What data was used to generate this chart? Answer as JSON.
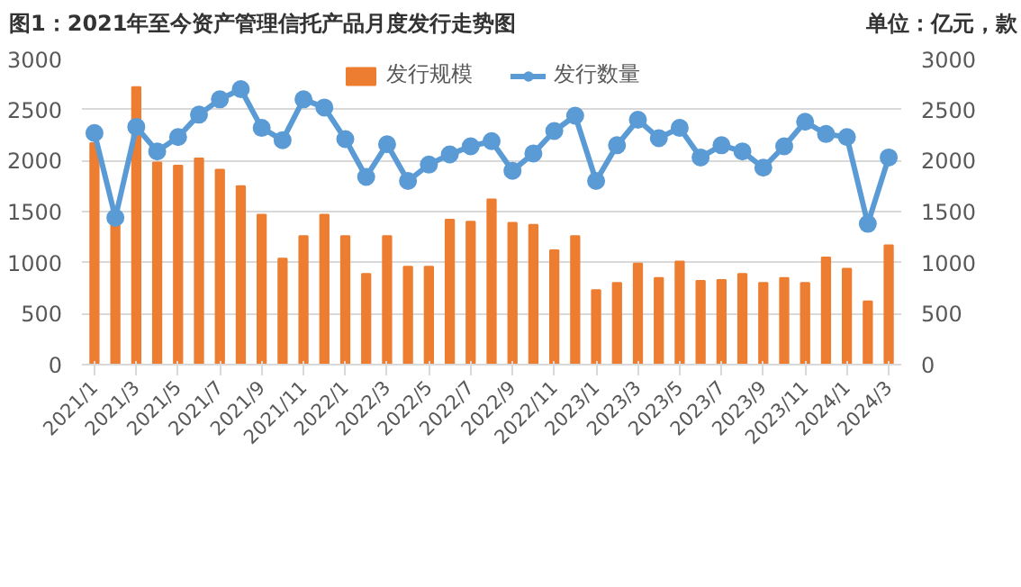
{
  "chart_data": {
    "type": "bar",
    "title": "图1：2021年至今资产管理信托产品月度发行走势图",
    "subtitle": "单位：亿元，款",
    "categories": [
      "2021/1",
      null,
      "2021/3",
      null,
      "2021/5",
      null,
      "2021/7",
      null,
      "2021/9",
      null,
      "2021/11",
      null,
      "2022/1",
      null,
      "2022/3",
      null,
      "2022/5",
      null,
      "2022/7",
      null,
      "2022/9",
      null,
      "2022/11",
      null,
      "2023/1",
      null,
      "2023/3",
      null,
      "2023/5",
      null,
      "2023/7",
      null,
      "2023/9",
      null,
      "2023/11",
      null,
      "2024/1",
      null,
      "2024/3"
    ],
    "series": [
      {
        "name": "发行规模",
        "color": "#ed7d31",
        "values": [
          2170,
          1400,
          2720,
          1980,
          1950,
          2020,
          1910,
          1750,
          1470,
          1040,
          1260,
          1470,
          1260,
          890,
          1260,
          960,
          960,
          1420,
          1400,
          1620,
          1390,
          1370,
          1120,
          1260,
          730,
          800,
          990,
          850,
          1010,
          820,
          830,
          890,
          800,
          850,
          800,
          1050,
          940,
          620,
          1170
        ]
      },
      {
        "name": "发行数量",
        "type": "line",
        "color": "#5b9bd5",
        "marker": "circle",
        "values": [
          2270,
          1440,
          2330,
          2090,
          2230,
          2450,
          2600,
          2700,
          2320,
          2200,
          2600,
          2520,
          2210,
          1840,
          2160,
          1800,
          1960,
          2060,
          2140,
          2190,
          1900,
          2070,
          2290,
          2440,
          1800,
          2150,
          2400,
          2220,
          2320,
          2030,
          2150,
          2090,
          1930,
          2140,
          2380,
          2260,
          2230,
          1380,
          2030
        ]
      }
    ],
    "ylim": [
      0,
      3000
    ],
    "yticks": [
      0,
      500,
      1000,
      1500,
      2000,
      2500,
      3000
    ],
    "y2lim": [
      0,
      3000
    ],
    "y2ticks": [
      0,
      500,
      1000,
      1500,
      2000,
      2500,
      3000
    ],
    "grid": "y",
    "legend": "top"
  }
}
